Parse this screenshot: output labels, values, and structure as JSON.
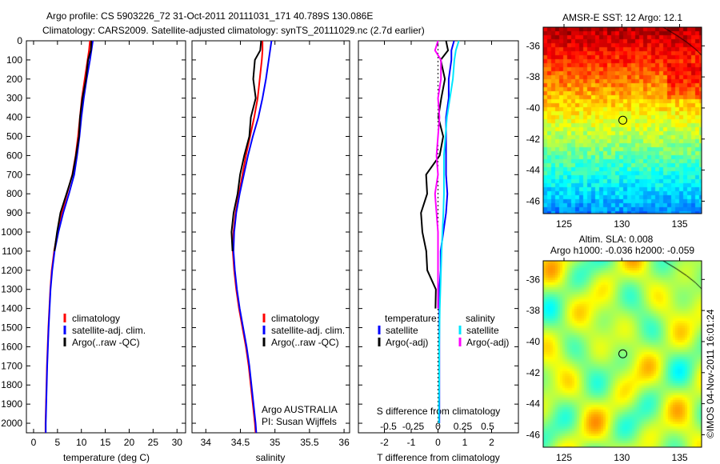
{
  "chart_data": [
    {
      "type": "line",
      "title": "Argo profile: CS 5903226_72 31-Oct-2011 20111031_171 40.789S 130.086E",
      "subtitle": "Climatology: CARS2009. Satellite-adjusted climatology: synTS_20111029.nc (2.7d earlier)",
      "xlabel": "temperature (deg C)",
      "ylabel": "depth",
      "xlim": [
        -1.5,
        31.8
      ],
      "ylim": [
        2050,
        0
      ],
      "xticks": [
        0,
        5,
        10,
        15,
        20,
        25,
        30
      ],
      "yticks": [
        0,
        100,
        200,
        300,
        400,
        500,
        600,
        700,
        800,
        900,
        1000,
        1100,
        1200,
        1300,
        1400,
        1500,
        1600,
        1700,
        1800,
        1900,
        2000
      ],
      "depth": [
        0,
        50,
        100,
        200,
        300,
        400,
        500,
        600,
        700,
        800,
        900,
        1000,
        1100,
        1200,
        1300,
        1400,
        1500,
        1600,
        1700,
        1800,
        1900,
        2000,
        2050
      ],
      "series": [
        {
          "name": "climatology",
          "color": "#ff0000",
          "values": [
            11.8,
            11.6,
            11.3,
            10.7,
            10.1,
            9.7,
            9.3,
            8.8,
            8.1,
            7.0,
            5.9,
            5.0,
            4.3,
            3.8,
            3.5,
            3.3,
            3.1,
            2.95,
            2.8,
            2.7,
            2.6,
            2.5,
            2.5
          ]
        },
        {
          "name": "satellite-adj. clim.",
          "color": "#0000ff",
          "values": [
            12.4,
            12.1,
            11.8,
            11.1,
            10.5,
            10.0,
            9.6,
            9.1,
            8.5,
            7.4,
            6.2,
            5.2,
            4.4,
            3.9,
            3.55,
            3.35,
            3.15,
            3.0,
            2.85,
            2.75,
            2.65,
            2.55,
            2.55
          ]
        },
        {
          "name": "Argo(..raw -QC)",
          "color": "#000000",
          "values": [
            12.1,
            11.9,
            11.5,
            10.9,
            10.2,
            9.8,
            9.4,
            8.9,
            8.2,
            6.8,
            5.7,
            4.9,
            4.3
          ]
        }
      ]
    },
    {
      "type": "line",
      "xlabel": "salinity",
      "xlim": [
        33.8,
        36.08
      ],
      "ylim": [
        2050,
        0
      ],
      "xticks": [
        34,
        34.5,
        35,
        35.5,
        36
      ],
      "depth": [
        0,
        50,
        100,
        200,
        300,
        400,
        500,
        600,
        700,
        800,
        900,
        1000,
        1100,
        1200,
        1300,
        1400,
        1500,
        1600,
        1700,
        1800,
        1900,
        2000,
        2050
      ],
      "series": [
        {
          "name": "climatology",
          "color": "#ff0000",
          "values": [
            34.82,
            34.82,
            34.81,
            34.78,
            34.75,
            34.7,
            34.64,
            34.58,
            34.53,
            34.48,
            34.43,
            34.4,
            34.39,
            34.41,
            34.44,
            34.48,
            34.53,
            34.58,
            34.62,
            34.65,
            34.68,
            34.71,
            34.72
          ]
        },
        {
          "name": "satellite-adj. clim.",
          "color": "#0000ff",
          "values": [
            34.95,
            34.93,
            34.91,
            34.87,
            34.82,
            34.76,
            34.68,
            34.61,
            34.55,
            34.49,
            34.44,
            34.41,
            34.4,
            34.42,
            34.45,
            34.49,
            34.54,
            34.59,
            34.63,
            34.66,
            34.69,
            34.72,
            34.73
          ]
        },
        {
          "name": "Argo(..raw -QC)",
          "color": "#000000",
          "values": [
            34.8,
            34.78,
            34.72,
            34.68,
            34.72,
            34.66,
            34.62,
            34.56,
            34.5,
            34.45,
            34.41,
            34.37,
            34.38
          ]
        }
      ]
    },
    {
      "type": "line",
      "xlabel": "T difference from climatology",
      "xlabel2": "S difference from climatology",
      "xlim": [
        -2.97,
        3.0
      ],
      "ylim": [
        2050,
        0
      ],
      "xticks": [
        -2,
        -1,
        0,
        1,
        2
      ],
      "xticks2": [
        -0.5,
        -0.25,
        0,
        0.25,
        0.5
      ],
      "depth": [
        0,
        50,
        100,
        200,
        300,
        400,
        500,
        600,
        700,
        800,
        900,
        1000,
        1100,
        1200,
        1300,
        1400,
        1500,
        1600,
        1700,
        1800,
        1900,
        2000
      ],
      "series": [
        {
          "name": "temperature satellite",
          "color": "#0000ff",
          "values": [
            0.6,
            0.5,
            0.5,
            0.4,
            0.4,
            0.3,
            0.3,
            0.3,
            0.3,
            0.35,
            0.3,
            0.2,
            0.1,
            0.1,
            0.05,
            0.05,
            0.05,
            0.05,
            0.05,
            0.05,
            0.05,
            0.05
          ]
        },
        {
          "name": "temperature Argo(-adj)",
          "color": "#000000",
          "values": [
            0.3,
            0.3,
            0.2,
            0.2,
            0.1,
            0.1,
            0.1,
            0.1,
            -0.4,
            -0.5,
            -0.55,
            -0.6,
            -0.5,
            -0.3,
            -0.15,
            -0.1
          ]
        },
        {
          "name": "salinity satellite",
          "color": "#00e5ff",
          "values": [
            0.7,
            0.6,
            0.55,
            0.5,
            0.4,
            0.3,
            0.25,
            0.2,
            0.2,
            0.2,
            0.18,
            0.15,
            0.12,
            0.1,
            0.08,
            0.06,
            0.05,
            0.04,
            0.04,
            0.04,
            0.03,
            0.03
          ]
        },
        {
          "name": "salinity Argo(-adj)",
          "color": "#ff00ff",
          "values": [
            0.0,
            -0.1,
            0.1,
            0.1,
            0.0,
            0.05,
            0.0,
            -0.05,
            0.0,
            -0.1,
            -0.05,
            0.0,
            0.0,
            0.0,
            0.0,
            0.0
          ]
        }
      ]
    },
    {
      "type": "heatmap",
      "title": "AMSR-E SST: 12 Argo: 12.1",
      "xlim": [
        123.2,
        136.9
      ],
      "ylim": [
        -46.8,
        -34.8
      ],
      "xticks": [
        125,
        130,
        135
      ],
      "yticks": [
        -36,
        -38,
        -40,
        -42,
        -44,
        -46
      ],
      "argo_position": [
        130.086,
        -40.789
      ]
    },
    {
      "type": "heatmap",
      "title": "Altim. SLA: 0.008",
      "subtitle": "Argo h1000: -0.036 h2000: -0.059",
      "xlim": [
        123.2,
        136.9
      ],
      "ylim": [
        -46.8,
        -34.8
      ],
      "xticks": [
        125,
        130,
        135
      ],
      "yticks": [
        -36,
        -38,
        -40,
        -42,
        -44,
        -46
      ],
      "argo_position": [
        130.086,
        -40.789
      ]
    }
  ],
  "legend1": {
    "items": [
      "climatology",
      "satellite-adj. clim.",
      "Argo(..raw -QC)"
    ]
  },
  "legend3": {
    "t_header": "temperature",
    "s_header": "salinity",
    "items": [
      "satellite",
      "Argo(-adj)",
      "satellite",
      "Argo(-adj)"
    ]
  },
  "credit": {
    "line1": "Argo AUSTRALIA",
    "line2": "PI: Susan Wijffels"
  },
  "stamp": "©IMOS 04-Nov-2011 16:01:24"
}
